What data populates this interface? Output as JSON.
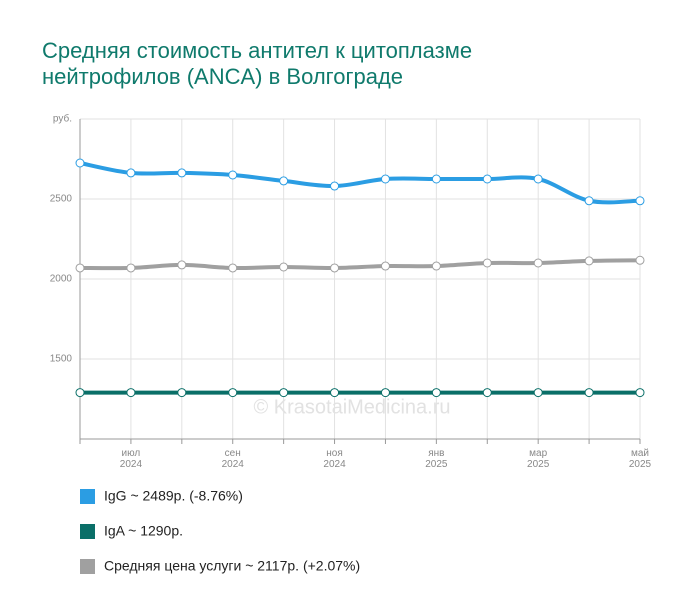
{
  "chart_data": {
    "type": "line",
    "title": "Средняя стоимость антител к цитоплазме нейтрофилов (ANCA) в Волгограде",
    "watermark": "© KrasotaiMedicina.ru",
    "categories": [
      null,
      "июл 2024",
      null,
      "сен 2024",
      null,
      "ноя 2024",
      null,
      "янв 2025",
      null,
      "мар 2025",
      null,
      "май 2025"
    ],
    "ylim": [
      1000,
      3000
    ],
    "yticks": [
      1500,
      2000,
      2500,
      {
        "value": 3000,
        "label": "руб."
      }
    ],
    "grid": true,
    "series": [
      {
        "name": "IgG ~ 2489р. (-8.76%)",
        "color": "#2b9de3",
        "values": [
          2725,
          2663,
          2663,
          2650,
          2613,
          2581,
          2625,
          2625,
          2625,
          2625,
          2489,
          2489
        ]
      },
      {
        "name": "IgA ~ 1290р.",
        "color": "#0a6f68",
        "values": [
          1290,
          1290,
          1290,
          1290,
          1290,
          1290,
          1290,
          1290,
          1290,
          1290,
          1290,
          1290
        ]
      },
      {
        "name": "Средняя цена услуги ~ 2117р. (+2.07%)",
        "color": "#a0a0a0",
        "values": [
          2069,
          2069,
          2088,
          2069,
          2075,
          2069,
          2081,
          2081,
          2100,
          2100,
          2113,
          2117
        ]
      }
    ]
  }
}
